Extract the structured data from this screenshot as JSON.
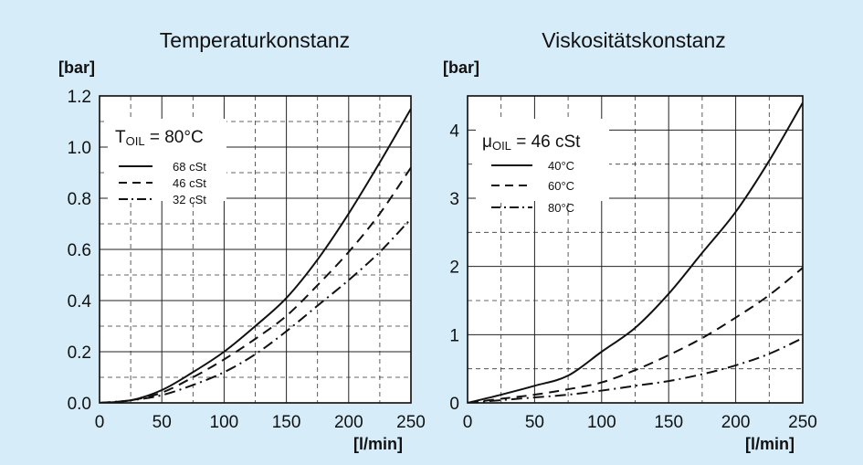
{
  "chart_data": [
    {
      "type": "line",
      "title": "Temperaturkonstanz",
      "ylabel": "[bar]",
      "xlabel": "[l/min]",
      "xlim": [
        0,
        250
      ],
      "ylim": [
        0,
        1.2
      ],
      "x_ticks": [
        "0",
        "50",
        "100",
        "150",
        "200",
        "250"
      ],
      "y_ticks": [
        "0.0",
        "0.2",
        "0.4",
        "0.6",
        "0.8",
        "1.0",
        "1.2"
      ],
      "legend": {
        "title_main": "T",
        "title_sub": "OIL",
        "title_rest": " = 80°C",
        "placement": "top-left"
      },
      "series": [
        {
          "name": "68 cSt",
          "style": "solid",
          "x": [
            0,
            25,
            50,
            75,
            100,
            125,
            150,
            175,
            200,
            225,
            250
          ],
          "y": [
            0,
            0.01,
            0.05,
            0.12,
            0.2,
            0.3,
            0.41,
            0.56,
            0.74,
            0.94,
            1.15
          ]
        },
        {
          "name": "46 cSt",
          "style": "dashed",
          "x": [
            0,
            25,
            50,
            75,
            100,
            125,
            150,
            175,
            200,
            225,
            250
          ],
          "y": [
            0,
            0.01,
            0.04,
            0.1,
            0.17,
            0.25,
            0.34,
            0.46,
            0.59,
            0.74,
            0.92
          ]
        },
        {
          "name": "32 cSt",
          "style": "dashdot",
          "x": [
            0,
            25,
            50,
            75,
            100,
            125,
            150,
            175,
            200,
            225,
            250
          ],
          "y": [
            0,
            0.01,
            0.03,
            0.07,
            0.12,
            0.19,
            0.28,
            0.38,
            0.48,
            0.59,
            0.72
          ]
        }
      ]
    },
    {
      "type": "line",
      "title": "Viskositätskonstanz",
      "ylabel": "[bar]",
      "xlabel": "[l/min]",
      "xlim": [
        0,
        250
      ],
      "ylim": [
        0,
        4.5
      ],
      "x_ticks": [
        "0",
        "50",
        "100",
        "150",
        "200",
        "250"
      ],
      "y_ticks": [
        "0",
        "1",
        "2",
        "3",
        "4"
      ],
      "legend": {
        "title_main": "μ",
        "title_sub": "OIL",
        "title_rest": " = 46 cSt",
        "placement": "top-left"
      },
      "series": [
        {
          "name": "40°C",
          "style": "solid",
          "x": [
            0,
            25,
            50,
            75,
            100,
            125,
            150,
            175,
            200,
            225,
            250
          ],
          "y": [
            0,
            0.12,
            0.25,
            0.4,
            0.75,
            1.1,
            1.6,
            2.2,
            2.8,
            3.55,
            4.4
          ]
        },
        {
          "name": "60°C",
          "style": "dashed",
          "x": [
            0,
            25,
            50,
            75,
            100,
            125,
            150,
            175,
            200,
            225,
            250
          ],
          "y": [
            0,
            0.06,
            0.12,
            0.2,
            0.3,
            0.48,
            0.7,
            0.95,
            1.25,
            1.58,
            1.98
          ]
        },
        {
          "name": "80°C",
          "style": "dashdot",
          "x": [
            0,
            25,
            50,
            75,
            100,
            125,
            150,
            175,
            200,
            225,
            250
          ],
          "y": [
            0,
            0.04,
            0.08,
            0.12,
            0.18,
            0.25,
            0.32,
            0.42,
            0.55,
            0.72,
            0.95
          ]
        }
      ]
    }
  ]
}
